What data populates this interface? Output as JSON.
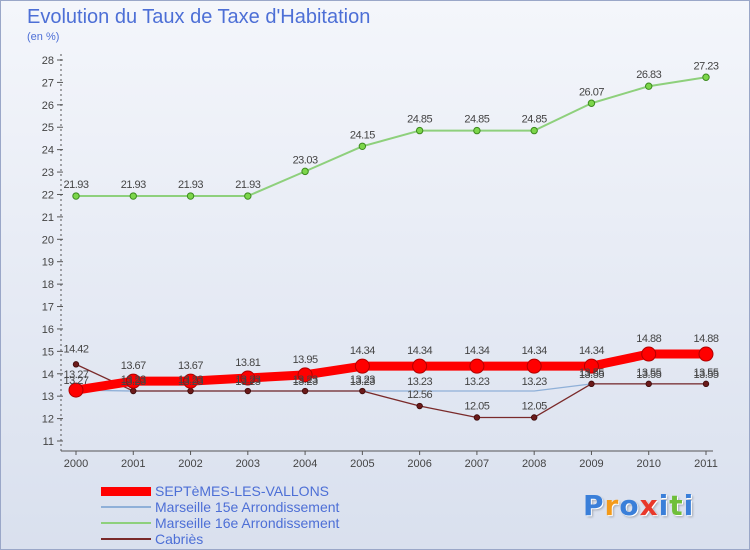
{
  "title": "Evolution du Taux de Taxe d'Habitation",
  "unit_label": "(en %)",
  "chart_data": {
    "type": "line",
    "title": "Evolution du Taux de Taxe d'Habitation",
    "ylabel": "(en %)",
    "ylim": [
      11,
      28
    ],
    "yticks": [
      "11",
      "12",
      "13",
      "14",
      "15",
      "16",
      "17",
      "18",
      "19",
      "20",
      "21",
      "22",
      "23",
      "24",
      "25",
      "26",
      "27",
      "28"
    ],
    "x": [
      "2000",
      "2001",
      "2002",
      "2003",
      "2004",
      "2005",
      "2006",
      "2007",
      "2008",
      "2009",
      "2010",
      "2011"
    ],
    "grid": false,
    "legend_position": "bottom",
    "series": [
      {
        "name": "SEPTèMES-LES-VALLONS",
        "color": "#ff0000",
        "values": [
          13.27,
          13.67,
          13.67,
          13.81,
          13.95,
          14.34,
          14.34,
          14.34,
          14.34,
          14.34,
          14.88,
          14.88
        ],
        "labels": [
          "13.27",
          "13.67",
          "13.67",
          "13.81",
          "13.95",
          "14.34",
          "14.34",
          "14.34",
          "14.34",
          "14.34",
          "14.88",
          "14.88"
        ]
      },
      {
        "name": "Marseille 15e  Arrondissement",
        "color": "#8fb0d8",
        "values": [
          13.27,
          13.23,
          13.23,
          13.23,
          13.23,
          13.23,
          13.23,
          13.23,
          13.23,
          13.55,
          13.55,
          13.55
        ],
        "labels": [
          "13.27",
          "13.23",
          "13.23",
          "13.23",
          "13.23",
          "13.23",
          "13.23",
          "13.23",
          "13.23",
          "13.55",
          "13.55",
          "13.55"
        ]
      },
      {
        "name": "Marseille 16e  Arrondissement",
        "color": "#8ed07c",
        "values": [
          21.93,
          21.93,
          21.93,
          21.93,
          23.03,
          24.15,
          24.85,
          24.85,
          24.85,
          26.07,
          26.83,
          27.23
        ],
        "labels": [
          "21.93",
          "21.93",
          "21.93",
          "21.93",
          "23.03",
          "24.15",
          "24.85",
          "24.85",
          "24.85",
          "26.07",
          "26.83",
          "27.23"
        ]
      },
      {
        "name": "Cabriès",
        "color": "#7a2a2a",
        "values": [
          14.42,
          13.23,
          13.23,
          13.23,
          13.23,
          13.23,
          12.56,
          12.05,
          12.05,
          13.55,
          13.55,
          13.55
        ],
        "labels": [
          "14.42",
          "13.23",
          "13.23",
          "13.23",
          "13.23",
          "13.23",
          "12.56",
          "12.05",
          "12.05",
          "13.55",
          "13.55",
          "13.55"
        ]
      }
    ]
  },
  "legend": [
    {
      "label": "SEPTèMES-LES-VALLONS",
      "color": "#ff0000"
    },
    {
      "label": "Marseille 15e  Arrondissement",
      "color": "#8fb0d8"
    },
    {
      "label": "Marseille 16e  Arrondissement",
      "color": "#8ed07c"
    },
    {
      "label": "Cabriès",
      "color": "#7a2a2a"
    }
  ],
  "logo": {
    "letters": [
      "P",
      "r",
      "o",
      "x",
      "i",
      "t",
      "i"
    ],
    "colors": [
      "#3a7fd9",
      "#f39a1a",
      "#3a7fd9",
      "#e8382a",
      "#3a7fd9",
      "#6fbf3a",
      "#3a7fd9"
    ]
  }
}
